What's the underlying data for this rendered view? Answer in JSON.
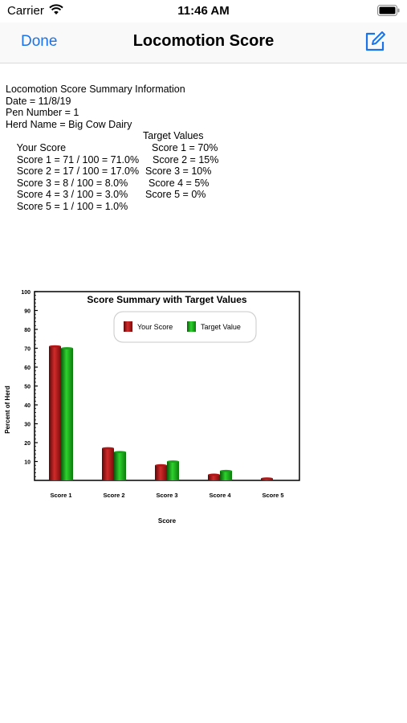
{
  "status_bar": {
    "carrier": "Carrier",
    "time": "11:46 AM"
  },
  "nav": {
    "done_label": "Done",
    "title": "Locomotion Score",
    "compose_icon": "compose-icon"
  },
  "summary": {
    "heading": "Locomotion Score Summary Information",
    "date": "Date = 11/8/19",
    "pen": "Pen Number = 1",
    "herd": "Herd Name = Big Cow Dairy",
    "your_header": "Your Score",
    "target_header": "Target Values",
    "rows": [
      {
        "your": "Score 1 = 71 / 100 = 71.0%",
        "target": "Score 1 = 70%"
      },
      {
        "your": "Score 2 = 17 / 100 = 17.0%",
        "target": "Score 2 = 15%"
      },
      {
        "your": "Score 3 = 8 / 100 = 8.0%",
        "target": "Score 3 = 10%"
      },
      {
        "your": "Score 4 = 3 / 100 = 3.0%",
        "target": "Score 4 = 5%"
      },
      {
        "your": "Score 5 = 1 / 100 = 1.0%",
        "target": "Score 5 = 0%"
      }
    ]
  },
  "chart_data": {
    "type": "bar",
    "title": "Score Summary with Target Values",
    "xlabel": "Score",
    "ylabel": "Percent of Herd",
    "categories": [
      "Score 1",
      "Score 2",
      "Score 3",
      "Score 4",
      "Score 5"
    ],
    "series": [
      {
        "name": "Your Score",
        "values": [
          71,
          17,
          8,
          3,
          1
        ],
        "color": "#b01818"
      },
      {
        "name": "Target Value",
        "values": [
          70,
          15,
          10,
          5,
          0
        ],
        "color": "#1aa01a"
      }
    ],
    "ylim": [
      0,
      100
    ],
    "yticks": [
      10,
      20,
      30,
      40,
      50,
      60,
      70,
      80,
      90,
      100
    ],
    "legend": "top-right",
    "grid": false
  }
}
